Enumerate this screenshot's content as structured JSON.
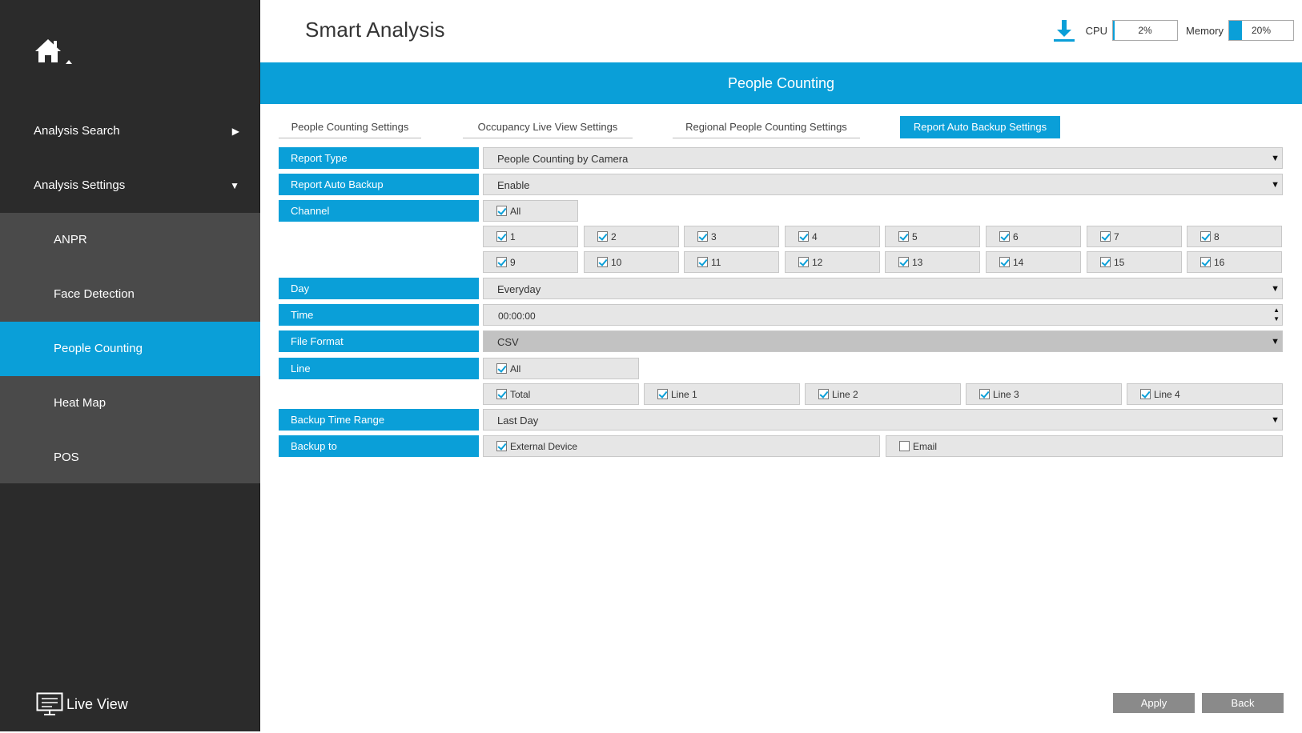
{
  "sidebar": {
    "items": [
      {
        "label": "Analysis Search",
        "arrow": "▶"
      },
      {
        "label": "Analysis Settings",
        "arrow": "▼"
      }
    ],
    "sub_items": [
      {
        "label": "ANPR"
      },
      {
        "label": "Face Detection"
      },
      {
        "label": "People Counting"
      },
      {
        "label": "Heat Map"
      },
      {
        "label": "POS"
      }
    ],
    "live_view": "Live View"
  },
  "header": {
    "title": "Smart Analysis",
    "cpu_label": "CPU",
    "cpu_value": "2%",
    "cpu_fraction": 0.02,
    "memory_label": "Memory",
    "memory_value": "20%",
    "memory_fraction": 0.2,
    "accent_color": "#0a9fd8"
  },
  "banner": {
    "title": "People Counting"
  },
  "tabs": [
    {
      "label": "People Counting Settings"
    },
    {
      "label": "Occupancy Live View Settings"
    },
    {
      "label": "Regional People Counting Settings"
    },
    {
      "label": "Report Auto Backup Settings",
      "active": true
    }
  ],
  "form": {
    "report_type": {
      "label": "Report Type",
      "value": "People Counting by Camera"
    },
    "report_auto_backup": {
      "label": "Report Auto Backup",
      "value": "Enable"
    },
    "channel": {
      "label": "Channel",
      "all": {
        "label": "All",
        "checked": true
      },
      "options": [
        {
          "label": "1",
          "checked": true
        },
        {
          "label": "2",
          "checked": true
        },
        {
          "label": "3",
          "checked": true
        },
        {
          "label": "4",
          "checked": true
        },
        {
          "label": "5",
          "checked": true
        },
        {
          "label": "6",
          "checked": true
        },
        {
          "label": "7",
          "checked": true
        },
        {
          "label": "8",
          "checked": true
        },
        {
          "label": "9",
          "checked": true
        },
        {
          "label": "10",
          "checked": true
        },
        {
          "label": "11",
          "checked": true
        },
        {
          "label": "12",
          "checked": true
        },
        {
          "label": "13",
          "checked": true
        },
        {
          "label": "14",
          "checked": true
        },
        {
          "label": "15",
          "checked": true
        },
        {
          "label": "16",
          "checked": true
        }
      ]
    },
    "day": {
      "label": "Day",
      "value": "Everyday"
    },
    "time": {
      "label": "Time",
      "value": "00:00:00"
    },
    "file_format": {
      "label": "File Format",
      "value": "CSV"
    },
    "line": {
      "label": "Line",
      "all": {
        "label": "All",
        "checked": true
      },
      "options": [
        {
          "label": "Total",
          "checked": true
        },
        {
          "label": "Line 1",
          "checked": true
        },
        {
          "label": "Line 2",
          "checked": true
        },
        {
          "label": "Line 3",
          "checked": true
        },
        {
          "label": "Line 4",
          "checked": true
        }
      ]
    },
    "backup_time_range": {
      "label": "Backup Time Range",
      "value": "Last Day"
    },
    "backup_to": {
      "label": "Backup to",
      "options": [
        {
          "label": "External Device",
          "checked": true
        },
        {
          "label": "Email",
          "checked": false
        }
      ]
    }
  },
  "buttons": {
    "apply": "Apply",
    "back": "Back"
  }
}
